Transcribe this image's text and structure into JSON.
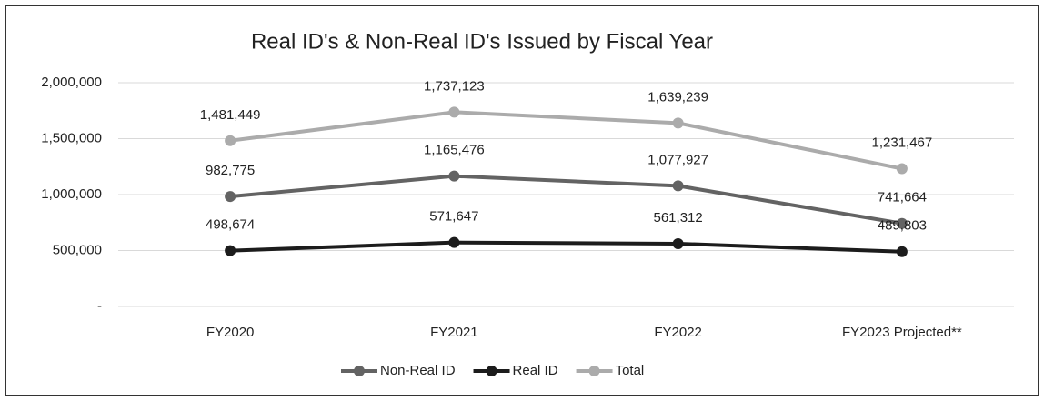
{
  "chart_data": {
    "type": "line",
    "title": "Real ID's & Non-Real ID's Issued by Fiscal Year",
    "categories": [
      "FY2020",
      "FY2021",
      "FY2022",
      "FY2023 Projected**"
    ],
    "series": [
      {
        "name": "Non-Real ID",
        "color": "#636363",
        "values": [
          982775,
          1165476,
          1077927,
          741664
        ],
        "value_labels": [
          "982,775",
          "1,165,476",
          "1,077,927",
          "741,664"
        ]
      },
      {
        "name": "Real ID",
        "color": "#1c1c1c",
        "values": [
          498674,
          571647,
          561312,
          489803
        ],
        "value_labels": [
          "498,674",
          "571,647",
          "561,312",
          "489,803"
        ]
      },
      {
        "name": "Total",
        "color": "#ababab",
        "values": [
          1481449,
          1737123,
          1639239,
          1231467
        ],
        "value_labels": [
          "1,481,449",
          "1,737,123",
          "1,639,239",
          "1,231,467"
        ]
      }
    ],
    "ylim": [
      0,
      2000000
    ],
    "yticks": [
      {
        "value": 0,
        "label": "-"
      },
      {
        "value": 500000,
        "label": "500,000"
      },
      {
        "value": 1000000,
        "label": "1,000,000"
      },
      {
        "value": 1500000,
        "label": "1,500,000"
      },
      {
        "value": 2000000,
        "label": "2,000,000"
      }
    ],
    "grid": true,
    "legend": "bottom"
  }
}
